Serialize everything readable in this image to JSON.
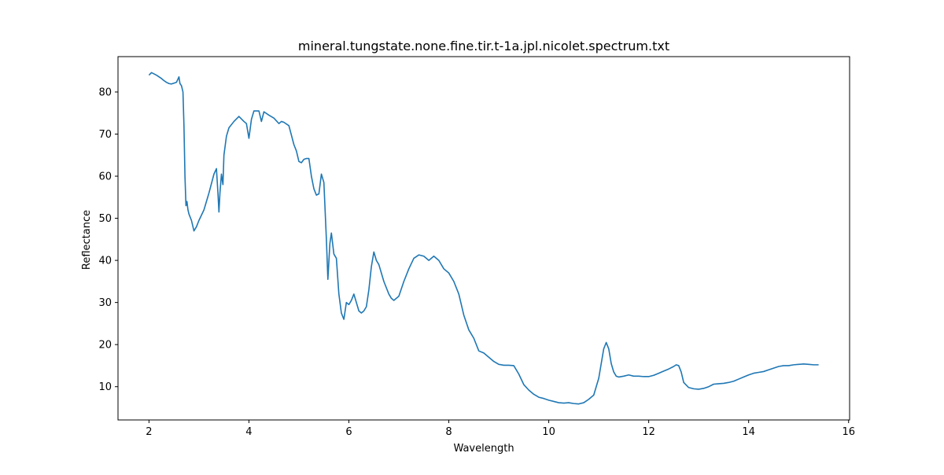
{
  "chart_data": {
    "type": "line",
    "title": "mineral.tungstate.none.fine.tir.t-1a.jpl.nicolet.spectrum.txt",
    "xlabel": "Wavelength",
    "ylabel": "Reflectance",
    "xlim": [
      1.38,
      16.02
    ],
    "ylim": [
      2.1,
      88.4
    ],
    "xticks": [
      2,
      4,
      6,
      8,
      10,
      12,
      14,
      16
    ],
    "yticks": [
      10,
      20,
      30,
      40,
      50,
      60,
      70,
      80
    ],
    "grid": false,
    "legend": "none",
    "line_color": "#1f77b4",
    "series": [
      {
        "x": [
          2.0,
          2.05,
          2.1,
          2.15,
          2.2,
          2.25,
          2.3,
          2.35,
          2.4,
          2.45,
          2.5,
          2.55,
          2.6,
          2.62,
          2.65,
          2.68,
          2.7,
          2.72,
          2.74,
          2.76,
          2.78,
          2.8,
          2.85,
          2.9,
          2.95,
          3.0,
          3.1,
          3.2,
          3.3,
          3.35,
          3.38,
          3.4,
          3.42,
          3.45,
          3.48,
          3.5,
          3.55,
          3.6,
          3.7,
          3.8,
          3.9,
          3.95,
          4.0,
          4.05,
          4.1,
          4.2,
          4.25,
          4.3,
          4.4,
          4.5,
          4.6,
          4.65,
          4.7,
          4.8,
          4.9,
          4.95,
          5.0,
          5.05,
          5.1,
          5.15,
          5.2,
          5.25,
          5.3,
          5.35,
          5.4,
          5.45,
          5.5,
          5.55,
          5.58,
          5.62,
          5.65,
          5.7,
          5.75,
          5.8,
          5.85,
          5.9,
          5.95,
          6.0,
          6.05,
          6.1,
          6.15,
          6.2,
          6.25,
          6.3,
          6.35,
          6.4,
          6.45,
          6.5,
          6.55,
          6.6,
          6.7,
          6.8,
          6.85,
          6.9,
          7.0,
          7.1,
          7.2,
          7.3,
          7.4,
          7.5,
          7.6,
          7.7,
          7.8,
          7.9,
          8.0,
          8.1,
          8.2,
          8.3,
          8.4,
          8.5,
          8.6,
          8.7,
          8.8,
          8.9,
          9.0,
          9.1,
          9.2,
          9.3,
          9.4,
          9.5,
          9.6,
          9.7,
          9.8,
          9.9,
          10.0,
          10.1,
          10.2,
          10.3,
          10.4,
          10.5,
          10.6,
          10.7,
          10.8,
          10.9,
          11.0,
          11.05,
          11.1,
          11.15,
          11.2,
          11.25,
          11.3,
          11.35,
          11.4,
          11.5,
          11.6,
          11.7,
          11.8,
          11.9,
          12.0,
          12.1,
          12.2,
          12.3,
          12.4,
          12.5,
          12.55,
          12.6,
          12.65,
          12.7,
          12.8,
          12.9,
          13.0,
          13.1,
          13.2,
          13.3,
          13.4,
          13.5,
          13.6,
          13.7,
          13.8,
          13.9,
          14.0,
          14.1,
          14.2,
          14.3,
          14.4,
          14.5,
          14.6,
          14.7,
          14.8,
          14.9,
          15.0,
          15.1,
          15.2,
          15.3,
          15.4
        ],
        "y": [
          84.0,
          84.6,
          84.3,
          84.0,
          83.6,
          83.2,
          82.7,
          82.3,
          82.0,
          81.9,
          82.1,
          82.3,
          83.6,
          82.0,
          81.5,
          80.0,
          72.0,
          60.0,
          53.0,
          54.0,
          52.0,
          51.0,
          49.5,
          47.0,
          48.0,
          49.5,
          52.0,
          56.0,
          60.5,
          61.8,
          56.0,
          51.5,
          56.0,
          60.5,
          58.0,
          65.0,
          69.5,
          71.5,
          73.0,
          74.2,
          73.0,
          72.5,
          69.0,
          73.5,
          75.5,
          75.5,
          73.0,
          75.3,
          74.5,
          73.8,
          72.5,
          73.0,
          72.8,
          72.0,
          67.5,
          66.0,
          63.5,
          63.2,
          64.0,
          64.2,
          64.2,
          60.0,
          57.0,
          55.5,
          55.8,
          60.5,
          58.5,
          45.0,
          35.5,
          44.0,
          46.5,
          41.5,
          40.5,
          32.0,
          27.5,
          26.0,
          30.0,
          29.5,
          30.5,
          32.0,
          30.0,
          28.0,
          27.5,
          28.0,
          29.0,
          33.0,
          38.5,
          42.0,
          40.0,
          39.0,
          35.0,
          32.0,
          31.0,
          30.5,
          31.5,
          35.0,
          38.0,
          40.5,
          41.3,
          41.0,
          40.0,
          41.0,
          40.0,
          38.0,
          37.0,
          35.0,
          32.0,
          27.0,
          23.5,
          21.5,
          18.5,
          18.0,
          17.0,
          16.0,
          15.3,
          15.1,
          15.1,
          15.0,
          13.0,
          10.5,
          9.2,
          8.2,
          7.5,
          7.2,
          6.8,
          6.5,
          6.2,
          6.1,
          6.2,
          6.0,
          5.9,
          6.2,
          7.0,
          8.0,
          12.0,
          15.5,
          19.0,
          20.5,
          19.0,
          15.5,
          13.5,
          12.5,
          12.3,
          12.5,
          12.8,
          12.5,
          12.5,
          12.4,
          12.4,
          12.7,
          13.2,
          13.7,
          14.2,
          14.8,
          15.2,
          15.0,
          13.5,
          11.0,
          9.8,
          9.5,
          9.4,
          9.6,
          10.0,
          10.6,
          10.7,
          10.8,
          11.0,
          11.3,
          11.8,
          12.3,
          12.8,
          13.2,
          13.4,
          13.6,
          14.0,
          14.4,
          14.8,
          15.0,
          15.0,
          15.2,
          15.3,
          15.4,
          15.3,
          15.2,
          15.2
        ]
      }
    ]
  }
}
